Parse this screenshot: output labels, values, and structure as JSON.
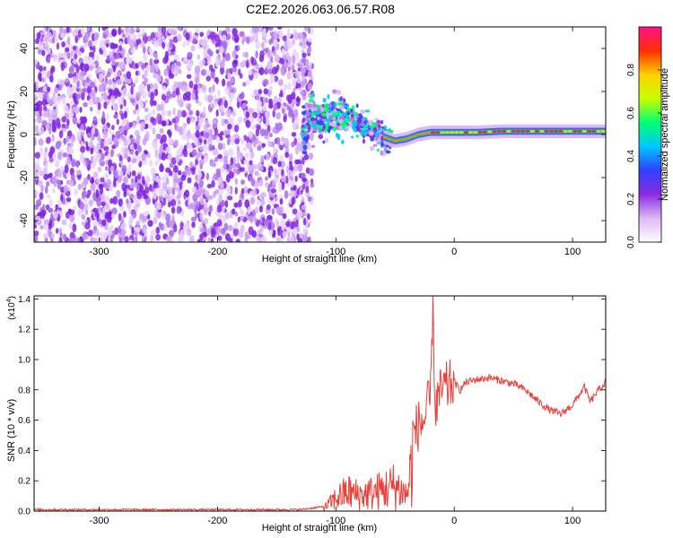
{
  "figure_title": "C2E2.2026.063.06.57.R08",
  "chart_data": [
    {
      "type": "heatmap",
      "xlabel": "Height of straight line (km)",
      "ylabel": "Frequency (Hz)",
      "xlim": [
        -355,
        128
      ],
      "ylim": [
        -50,
        50
      ],
      "xticks": [
        -300,
        -200,
        -100,
        0,
        100
      ],
      "yticks": [
        -40,
        -20,
        0,
        20,
        40
      ],
      "colorbar": {
        "label": "Normalized spectral amplitude",
        "range": [
          0,
          1
        ],
        "ticks": [
          0.0,
          0.2,
          0.4,
          0.6,
          0.8
        ],
        "tick_labels": [
          "0.0",
          "0.2",
          "0.4",
          "0.6",
          "0.8"
        ],
        "colors": [
          "#ffffff",
          "#dcb8f5",
          "#8a2be2",
          "#3040ff",
          "#00c8ff",
          "#00ff70",
          "#c8ff00",
          "#ffd000",
          "#ff3000",
          "#ff1090"
        ]
      },
      "regions": [
        {
          "description": "Broadband noise, amplitude ~0.1-0.2",
          "x": [
            -355,
            -120
          ],
          "freq": [
            -50,
            50
          ]
        },
        {
          "description": "Signal cluster, amplitude ~0.3-0.5",
          "x": [
            -125,
            -60
          ],
          "freq": [
            -15,
            15
          ]
        },
        {
          "description": "Narrow carrier line, amplitude ~0.6-0.95",
          "x": [
            -60,
            128
          ],
          "freq": [
            -5,
            5
          ]
        }
      ],
      "carrier_track": {
        "x": [
          -125,
          -110,
          -100,
          -90,
          -80,
          -70,
          -60,
          -50,
          -40,
          -30,
          -20,
          -10,
          0,
          20,
          40,
          60,
          80,
          100,
          128
        ],
        "freq": [
          8,
          7,
          9,
          8,
          5,
          2,
          -1,
          -3,
          -2,
          0,
          1,
          1,
          1,
          1,
          1.5,
          1.5,
          1.5,
          1.5,
          1.5
        ]
      }
    },
    {
      "type": "line",
      "xlabel": "Height of straight line (km)",
      "ylabel": "SNR (10 * v/v)",
      "multiplier": "(x10",
      "multiplier_exp": "4",
      "multiplier_close": ")",
      "xlim": [
        -355,
        128
      ],
      "ylim": [
        0,
        1.42
      ],
      "xticks": [
        -300,
        -200,
        -100,
        0,
        100
      ],
      "yticks": [
        0.0,
        0.2,
        0.4,
        0.6,
        0.8,
        1.0,
        1.2,
        1.4
      ],
      "ytick_labels": [
        "0.0",
        "0.2",
        "0.4",
        "0.6",
        "0.8",
        "1.0",
        "1.2",
        "1.4"
      ],
      "color": "#e8413a",
      "x": [
        -355,
        -300,
        -200,
        -130,
        -110,
        -100,
        -90,
        -80,
        -70,
        -60,
        -50,
        -40,
        -35,
        -30,
        -25,
        -20,
        -18,
        -16,
        -15,
        -10,
        -5,
        0,
        5,
        10,
        20,
        30,
        40,
        50,
        60,
        70,
        80,
        90,
        100,
        110,
        115,
        120,
        128
      ],
      "y": [
        0.01,
        0.01,
        0.01,
        0.01,
        0.03,
        0.12,
        0.18,
        0.15,
        0.17,
        0.2,
        0.24,
        0.15,
        0.5,
        0.57,
        0.6,
        0.75,
        1.42,
        0.62,
        0.72,
        0.8,
        0.82,
        0.85,
        0.8,
        0.85,
        0.87,
        0.88,
        0.86,
        0.84,
        0.8,
        0.73,
        0.67,
        0.64,
        0.7,
        0.82,
        0.72,
        0.78,
        0.85
      ]
    }
  ]
}
